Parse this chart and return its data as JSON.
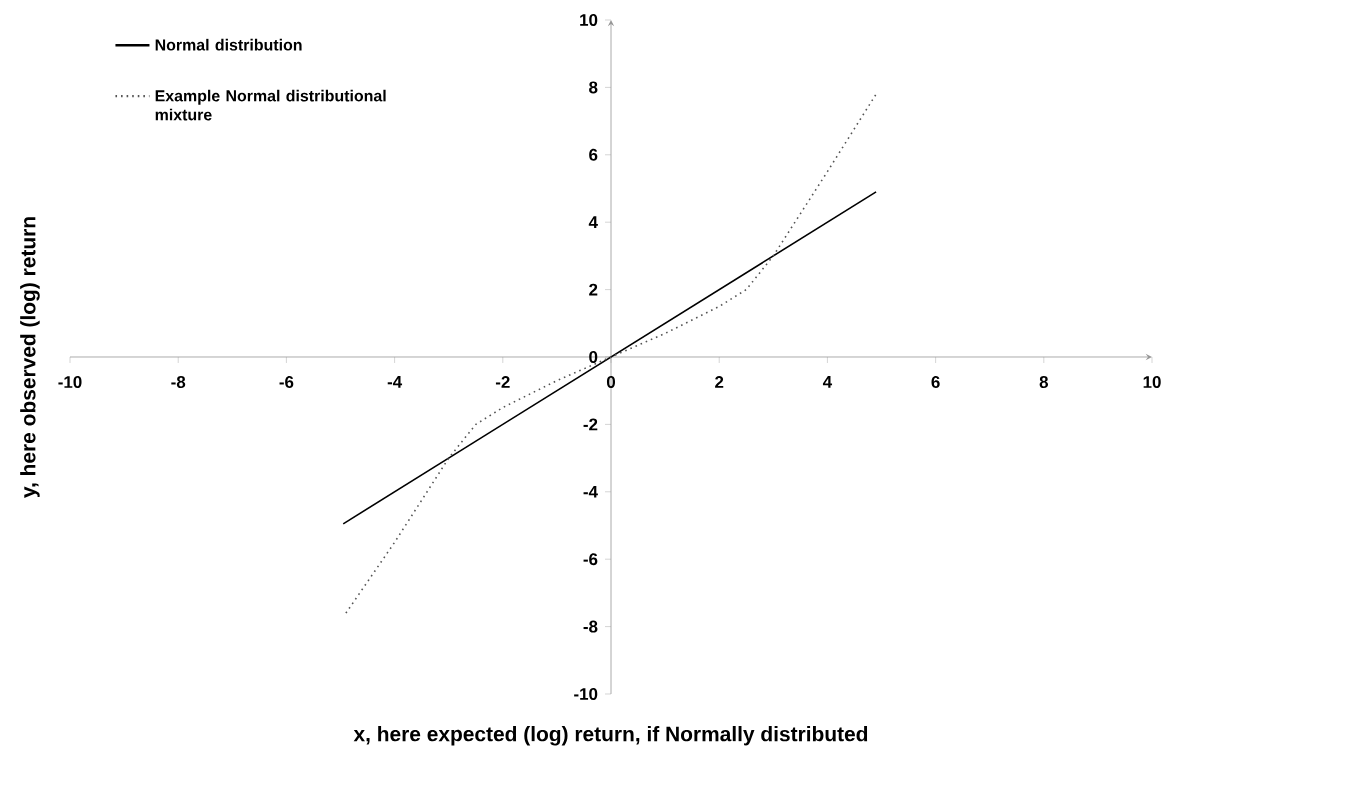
{
  "chart_data": {
    "type": "line",
    "xlabel": "x, here expected (log) return, if Normally distributed",
    "ylabel": "y, here observed (log) return",
    "series": [
      {
        "name": "Normal distribution",
        "color": "#000000",
        "line_style": "solid",
        "x": [
          -4.95,
          4.9
        ],
        "values": [
          -4.95,
          4.9
        ]
      },
      {
        "name": "Example Normal distributional mixture",
        "color": "#555555",
        "line_style": "dotted",
        "x": [
          -4.9,
          -4,
          -3,
          -2.5,
          -2,
          -1,
          0,
          1,
          2,
          2.5,
          3,
          4,
          4.9
        ],
        "values": [
          -7.6,
          -5.5,
          -3,
          -2,
          -1.5,
          -0.7,
          0,
          0.7,
          1.5,
          2,
          3,
          5.5,
          7.8
        ]
      }
    ],
    "xlim": [
      -10,
      10
    ],
    "ylim": [
      -10,
      10
    ],
    "xticks": [
      -10,
      -8,
      -6,
      -4,
      -2,
      0,
      2,
      4,
      6,
      8,
      10
    ],
    "yticks": [
      -10,
      -8,
      -6,
      -4,
      -2,
      0,
      2,
      4,
      6,
      8,
      10
    ],
    "grid": false,
    "legend": "top left"
  }
}
